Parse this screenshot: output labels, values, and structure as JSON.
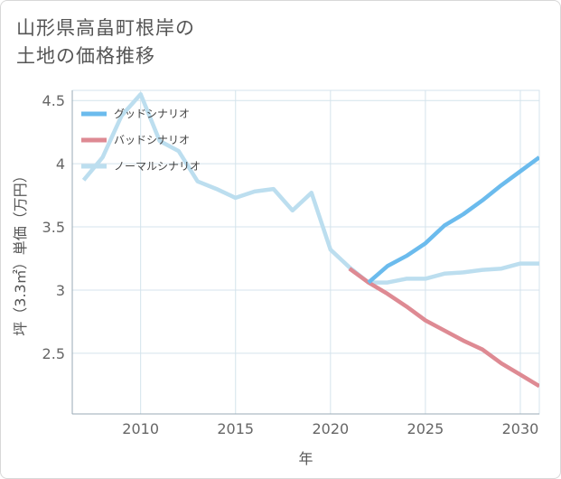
{
  "header": {
    "title_line1": "山形県高畠町根岸の",
    "title_line2": "土地の価格推移"
  },
  "colors": {
    "good": "#6bbbed",
    "bad": "#de8a93",
    "normal": "#bcdeef",
    "grid": "#d4e3ec",
    "axis": "#9aaab4"
  },
  "chart_data": {
    "type": "line",
    "title": "山形県高畠町根岸の土地の価格推移",
    "xlabel": "年",
    "ylabel": "坪（3.3㎡）単価（万円）",
    "xlim": [
      2006.4,
      2031
    ],
    "ylim": [
      2.02,
      4.58
    ],
    "x_ticks": [
      2010,
      2015,
      2020,
      2025,
      2030
    ],
    "y_ticks": [
      2.5,
      3,
      3.5,
      4,
      4.5
    ],
    "x_tick_labels": [
      "2010",
      "2015",
      "2020",
      "2025",
      "2030"
    ],
    "y_tick_labels": [
      "2.5",
      "3",
      "3.5",
      "4",
      "4.5"
    ],
    "grid": true,
    "legend_position": "top-left",
    "series": [
      {
        "name": "グッドシナリオ",
        "key": "good",
        "x": [
          2022,
          2023,
          2024,
          2025,
          2026,
          2027,
          2028,
          2029,
          2030,
          2031
        ],
        "y": [
          3.06,
          3.19,
          3.27,
          3.37,
          3.51,
          3.6,
          3.71,
          3.83,
          3.94,
          4.05
        ]
      },
      {
        "name": "バッドシナリオ",
        "key": "bad",
        "x": [
          2021,
          2022,
          2023,
          2024,
          2025,
          2026,
          2027,
          2028,
          2029,
          2030,
          2031
        ],
        "y": [
          3.17,
          3.06,
          2.97,
          2.87,
          2.76,
          2.68,
          2.6,
          2.53,
          2.42,
          2.33,
          2.24
        ]
      },
      {
        "name": "ノーマルシナリオ",
        "key": "normal",
        "x": [
          2007,
          2008,
          2009,
          2010,
          2011,
          2012,
          2013,
          2014,
          2015,
          2016,
          2017,
          2018,
          2019,
          2020,
          2021,
          2022,
          2023,
          2024,
          2025,
          2026,
          2027,
          2028,
          2029,
          2030,
          2031
        ],
        "y": [
          3.87,
          4.05,
          4.38,
          4.55,
          4.18,
          4.1,
          3.86,
          3.8,
          3.73,
          3.78,
          3.8,
          3.63,
          3.77,
          3.32,
          3.18,
          3.06,
          3.06,
          3.09,
          3.09,
          3.13,
          3.14,
          3.16,
          3.17,
          3.21,
          3.21
        ]
      }
    ]
  }
}
